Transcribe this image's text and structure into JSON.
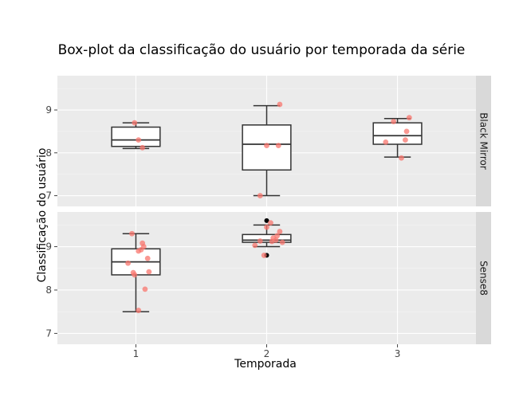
{
  "chart_data": {
    "type": "box",
    "title": "Box-plot da classificação do usuário por temporada da série",
    "xlabel": "Temporada",
    "ylabel": "Classificação do usuário",
    "x_categories": [
      "1",
      "2",
      "3"
    ],
    "ylim": [
      6.75,
      9.8
    ],
    "yticks": [
      7,
      8,
      9
    ],
    "grid": true,
    "panels": [
      {
        "name": "Black Mirror",
        "boxes": [
          {
            "x": "1",
            "min": 8.1,
            "q1": 8.15,
            "median": 8.3,
            "q3": 8.6,
            "max": 8.7,
            "outliers": []
          },
          {
            "x": "2",
            "min": 7.0,
            "q1": 7.6,
            "median": 8.2,
            "q3": 8.65,
            "max": 9.1,
            "outliers": []
          },
          {
            "x": "3",
            "min": 7.9,
            "q1": 8.2,
            "median": 8.4,
            "q3": 8.7,
            "max": 8.8,
            "outliers": []
          }
        ],
        "points": [
          {
            "x": 0.99,
            "y": 8.7
          },
          {
            "x": 1.02,
            "y": 8.3
          },
          {
            "x": 1.05,
            "y": 8.12
          },
          {
            "x": 1.95,
            "y": 7.0
          },
          {
            "x": 2.0,
            "y": 8.17
          },
          {
            "x": 2.09,
            "y": 8.17
          },
          {
            "x": 2.1,
            "y": 9.13
          },
          {
            "x": 2.91,
            "y": 8.25
          },
          {
            "x": 2.97,
            "y": 8.73
          },
          {
            "x": 3.03,
            "y": 7.88
          },
          {
            "x": 3.06,
            "y": 8.3
          },
          {
            "x": 3.07,
            "y": 8.5
          },
          {
            "x": 3.09,
            "y": 8.82
          }
        ]
      },
      {
        "name": "Sense8",
        "boxes": [
          {
            "x": "1",
            "min": 7.5,
            "q1": 8.35,
            "median": 8.65,
            "q3": 8.95,
            "max": 9.3,
            "outliers": []
          },
          {
            "x": "2",
            "min": 9.0,
            "q1": 9.1,
            "median": 9.15,
            "q3": 9.28,
            "max": 9.5,
            "outliers": [
              8.8,
              9.6
            ]
          }
        ],
        "points": [
          {
            "x": 0.94,
            "y": 8.62
          },
          {
            "x": 0.97,
            "y": 9.3
          },
          {
            "x": 0.98,
            "y": 8.4
          },
          {
            "x": 0.99,
            "y": 8.35
          },
          {
            "x": 1.02,
            "y": 7.53
          },
          {
            "x": 1.02,
            "y": 8.9
          },
          {
            "x": 1.04,
            "y": 8.93
          },
          {
            "x": 1.05,
            "y": 9.08
          },
          {
            "x": 1.06,
            "y": 9.0
          },
          {
            "x": 1.07,
            "y": 8.02
          },
          {
            "x": 1.09,
            "y": 8.73
          },
          {
            "x": 1.1,
            "y": 8.42
          },
          {
            "x": 1.91,
            "y": 9.03
          },
          {
            "x": 1.95,
            "y": 9.13
          },
          {
            "x": 1.98,
            "y": 8.8
          },
          {
            "x": 2.0,
            "y": 9.45
          },
          {
            "x": 2.03,
            "y": 9.55
          },
          {
            "x": 2.04,
            "y": 9.12
          },
          {
            "x": 2.05,
            "y": 9.2
          },
          {
            "x": 2.07,
            "y": 9.15
          },
          {
            "x": 2.08,
            "y": 9.25
          },
          {
            "x": 2.1,
            "y": 9.35
          },
          {
            "x": 2.12,
            "y": 9.1
          }
        ]
      }
    ],
    "colors": {
      "panel_bg": "#ebebeb",
      "strip_bg": "#d9d9d9",
      "grid": "#ffffff",
      "box_fill": "#ffffff",
      "box_line": "#333333",
      "point": "#f8766d",
      "outlier": "#000000"
    }
  }
}
